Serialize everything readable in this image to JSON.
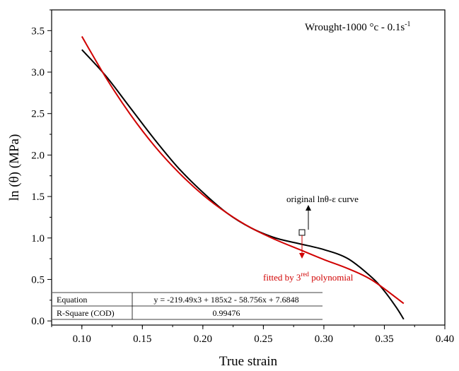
{
  "chart_data": {
    "type": "line",
    "title": "Wrought-1000 °c - 0.1s",
    "title_superscript": "-1",
    "xlabel": "True strain",
    "ylabel": "ln (θ) (MPa)",
    "xlim": [
      0.075,
      0.4
    ],
    "ylim": [
      -0.05,
      3.75
    ],
    "x_ticks": [
      "0.10",
      "0.15",
      "0.20",
      "0.25",
      "0.30",
      "0.35",
      "0.40"
    ],
    "y_ticks": [
      "0.0",
      "0.5",
      "1.0",
      "1.5",
      "2.0",
      "2.5",
      "3.0",
      "3.5"
    ],
    "grid": false,
    "series": [
      {
        "name": "original lnθ-ε curve",
        "color": "#000000",
        "x": [
          0.1,
          0.12,
          0.14,
          0.16,
          0.18,
          0.2,
          0.22,
          0.24,
          0.26,
          0.28,
          0.3,
          0.32,
          0.34,
          0.35,
          0.36,
          0.366
        ],
        "y": [
          3.27,
          2.95,
          2.57,
          2.19,
          1.84,
          1.55,
          1.3,
          1.12,
          1.0,
          0.93,
          0.86,
          0.75,
          0.52,
          0.36,
          0.16,
          0.02
        ]
      },
      {
        "name": "fitted by 3rd polynomial",
        "color": "#d10000",
        "x": [
          0.1,
          0.12,
          0.14,
          0.16,
          0.18,
          0.2,
          0.22,
          0.24,
          0.26,
          0.28,
          0.3,
          0.32,
          0.34,
          0.366
        ],
        "y": [
          3.43,
          2.93,
          2.49,
          2.11,
          1.79,
          1.52,
          1.3,
          1.12,
          0.98,
          0.86,
          0.74,
          0.63,
          0.49,
          0.21
        ]
      }
    ],
    "annotations": {
      "original": {
        "text": "original lnθ-ε curve",
        "color": "#000000"
      },
      "fitted": {
        "text_before": "fitted by 3",
        "superscript": "red",
        "text_after": " polynomial",
        "color": "#d10000"
      }
    },
    "fit_table": {
      "equation_label": "Equation",
      "equation": "y = -219.49x3 + 185x2 - 58.756x + 7.6848",
      "rsquare_label": "R-Square (COD)",
      "rsquare": "0.99476"
    }
  }
}
